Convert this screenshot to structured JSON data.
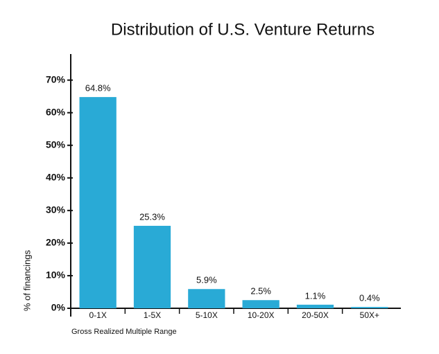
{
  "chart_data": {
    "type": "bar",
    "title": "Distribution of U.S. Venture Returns",
    "x_label": "Gross Realized Multiple Range",
    "y_label": "% of financings",
    "categories": [
      "0-1X",
      "1-5X",
      "5-10X",
      "10-20X",
      "20-50X",
      "50X+"
    ],
    "values": [
      64.8,
      25.3,
      5.9,
      2.5,
      1.1,
      0.4
    ],
    "value_labels": [
      "64.8%",
      "25.3%",
      "5.9%",
      "2.5%",
      "1.1%",
      "0.4%"
    ],
    "color": "#29aad6",
    "ylim": [
      0,
      78
    ],
    "yticks": [
      {
        "value": 0,
        "label": "0%"
      },
      {
        "value": 10,
        "label": "10%"
      },
      {
        "value": 20,
        "label": "20%"
      },
      {
        "value": 30,
        "label": "30%"
      },
      {
        "value": 40,
        "label": "40%"
      },
      {
        "value": 50,
        "label": "50%"
      },
      {
        "value": 60,
        "label": "60%"
      },
      {
        "value": 70,
        "label": "70%"
      }
    ],
    "grid": false
  }
}
